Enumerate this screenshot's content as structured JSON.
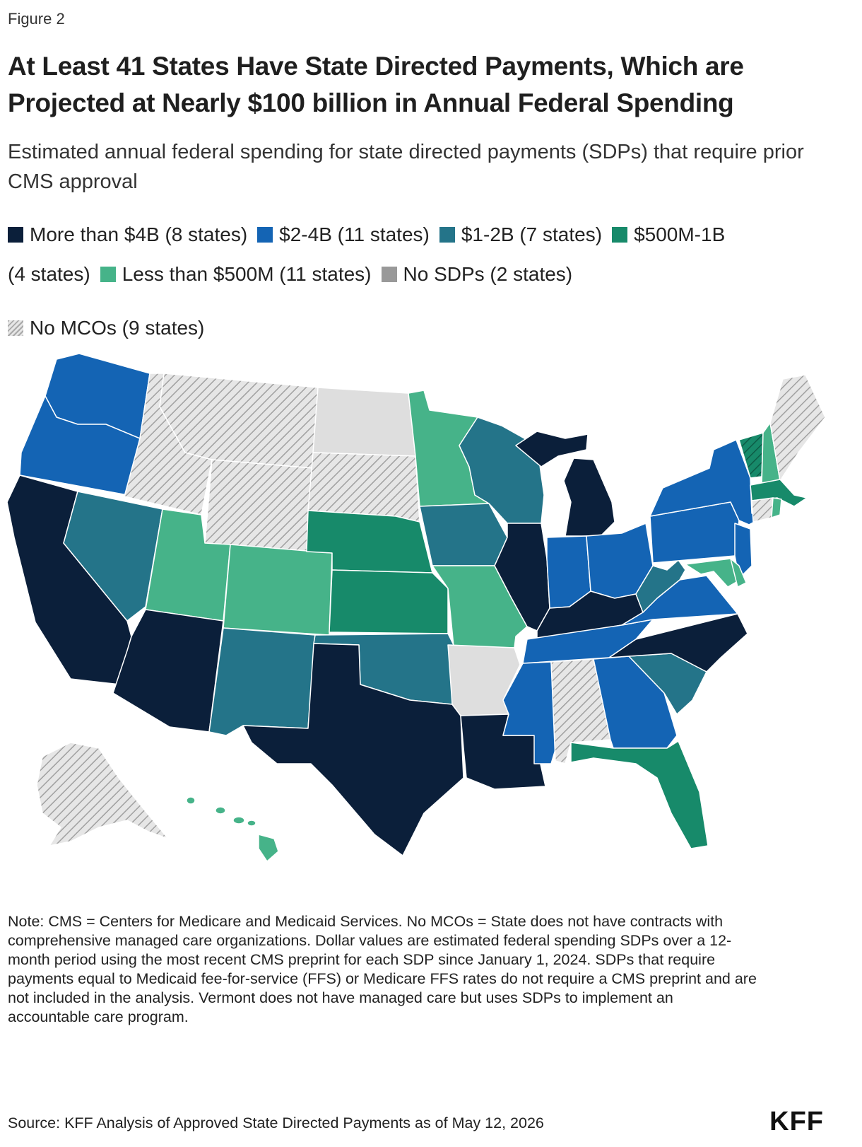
{
  "figure_label": "Figure 2",
  "title": "At Least 41 States Have State Directed Payments, Which are Projected at Nearly $100 billion in Annual Federal Spending",
  "subtitle": "Estimated annual federal spending for state directed payments (SDPs) that require prior CMS approval",
  "legend": [
    {
      "label": "More than $4B (8 states)",
      "color": "#0b1f3a"
    },
    {
      "label": "$2-4B (11 states)",
      "color": "#1464b4"
    },
    {
      "label": "$1-2B (7 states)",
      "color": "#247489"
    },
    {
      "label": "$500M-1B",
      "color": "#178a6a"
    },
    {
      "label": "(4 states)"
    },
    {
      "label": "Less than $500M (11 states)",
      "color": "#46b389"
    },
    {
      "label": "No SDPs (2 states)",
      "color": "#999999"
    },
    {
      "label": "No MCOs (9 states)",
      "pattern": "hatch"
    }
  ],
  "map_colors": {
    "over4b": "#0b1f3a",
    "b2to4": "#1464b4",
    "b1to2": "#247489",
    "m500to1b": "#178a6a",
    "under500m": "#46b389",
    "nosdp": "#dedede",
    "nomco": "#e6e6e6",
    "border": "#ffffff"
  },
  "note": "Note: CMS = Centers for Medicare and Medicaid Services. No MCOs = State does not have contracts with comprehensive managed care organizations. Dollar values are estimated federal spending SDPs over a 12-month period using the most recent CMS preprint for each SDP since January 1, 2024. SDPs that require payments equal to Medicaid fee-for-service (FFS) or Medicare FFS rates do not require a CMS preprint and are not included in the analysis. Vermont does not have managed care but uses SDPs to implement an accountable care program.",
  "source": "Source: KFF Analysis of Approved State Directed Payments as of May 12, 2026",
  "logo": "KFF"
}
